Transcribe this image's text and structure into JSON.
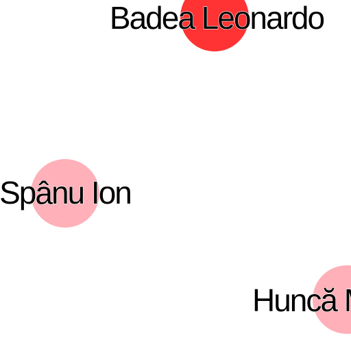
{
  "graph": {
    "nodes": [
      {
        "id": "badea",
        "label": "Badea Leonardo",
        "color": "#ff3333"
      },
      {
        "id": "spanu",
        "label": "Spânu Ion",
        "color": "#ffb0b8"
      },
      {
        "id": "hunca",
        "label": "Huncă M",
        "color": "#ffb0b8"
      }
    ]
  }
}
